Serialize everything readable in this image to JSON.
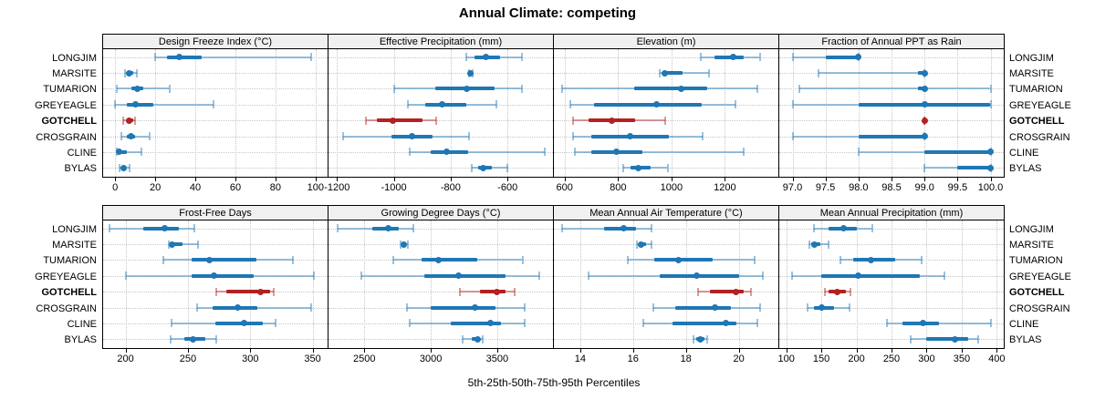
{
  "title": "Annual Climate: competing",
  "xlabel": "5th-25th-50th-75th-95th Percentiles",
  "chart_data": {
    "type": "dot-whisker-trellis",
    "title": "Annual Climate: competing",
    "xlabel": "5th-25th-50th-75th-95th Percentiles",
    "percentile_labels": [
      "5th",
      "25th",
      "50th",
      "75th",
      "95th"
    ],
    "sites": [
      "LONGJIM",
      "MARSITE",
      "TUMARION",
      "GREYEAGLE",
      "GOTCHELL",
      "CROSGRAIN",
      "CLINE",
      "BYLAS"
    ],
    "highlight_site": "GOTCHELL",
    "colors": {
      "series": "#1f77b4",
      "series_light": "rgba(31,119,180,0.45)",
      "highlight": "#b22222",
      "highlight_light": "rgba(178,34,34,0.45)",
      "header_bg": "#f0f0f0",
      "grid": "#c6c6c6"
    },
    "legend_position": "none",
    "grid": "dotted",
    "panels": [
      {
        "title": "Design Freeze Index (°C)",
        "xlim": [
          -6,
          106
        ],
        "ticks": [
          0,
          20,
          40,
          60,
          80,
          100
        ],
        "tick_labels": [
          "0",
          "20",
          "40",
          "60",
          "80",
          "100"
        ],
        "values": [
          [
            20,
            26,
            32,
            43,
            98
          ],
          [
            5,
            6,
            7,
            9,
            11
          ],
          [
            1,
            8,
            11,
            14,
            27
          ],
          [
            0,
            6,
            10,
            19,
            49
          ],
          [
            4,
            6,
            7,
            9,
            10
          ],
          [
            3,
            6,
            8,
            10,
            17
          ],
          [
            1,
            2,
            2,
            6,
            13
          ],
          [
            2,
            3,
            4,
            5,
            7
          ]
        ]
      },
      {
        "title": "Effective Precipitation (mm)",
        "xlim": [
          -1230,
          -440
        ],
        "ticks": [
          -1200,
          -1000,
          -800,
          -600
        ],
        "tick_labels": [
          "-1200",
          "-1000",
          "-800",
          "-600"
        ],
        "values": [
          [
            -745,
            -715,
            -675,
            -625,
            -550
          ],
          [
            -737,
            -733,
            -730,
            -727,
            -722
          ],
          [
            -1000,
            -855,
            -745,
            -645,
            -550
          ],
          [
            -950,
            -890,
            -830,
            -745,
            -640
          ],
          [
            -1100,
            -1060,
            -1005,
            -900,
            -850
          ],
          [
            -1180,
            -1010,
            -935,
            -865,
            -735
          ],
          [
            -945,
            -870,
            -815,
            -740,
            -470
          ],
          [
            -725,
            -705,
            -685,
            -655,
            -600
          ]
        ]
      },
      {
        "title": "Elevation (m)",
        "xlim": [
          560,
          1400
        ],
        "ticks": [
          600,
          800,
          1000,
          1200
        ],
        "tick_labels": [
          "600",
          "800",
          "1000",
          "1200"
        ],
        "values": [
          [
            1110,
            1160,
            1230,
            1270,
            1330
          ],
          [
            955,
            965,
            975,
            1040,
            1140
          ],
          [
            590,
            860,
            1035,
            1135,
            1320
          ],
          [
            620,
            710,
            945,
            1115,
            1240
          ],
          [
            630,
            690,
            775,
            865,
            975
          ],
          [
            630,
            700,
            845,
            990,
            1115
          ],
          [
            640,
            700,
            795,
            890,
            1270
          ],
          [
            820,
            845,
            875,
            920,
            985
          ]
        ]
      },
      {
        "title": "Fraction of Annual PPT as Rain",
        "xlim": [
          96.8,
          100.2
        ],
        "ticks": [
          97.0,
          97.5,
          98.0,
          98.5,
          99.0,
          99.5,
          100.0
        ],
        "tick_labels": [
          "97.0",
          "97.5",
          "98.0",
          "98.5",
          "99.0",
          "99.5",
          "100.0"
        ],
        "values": [
          [
            97.0,
            97.5,
            98.0,
            98.0,
            98.0
          ],
          [
            97.4,
            98.9,
            99.0,
            99.0,
            99.0
          ],
          [
            97.1,
            98.9,
            99.0,
            99.0,
            100.0
          ],
          [
            97.0,
            98.0,
            99.0,
            100.0,
            100.0
          ],
          [
            99.0,
            99.0,
            99.0,
            99.0,
            99.0
          ],
          [
            97.0,
            98.0,
            99.0,
            99.0,
            99.0
          ],
          [
            98.0,
            99.0,
            100.0,
            100.0,
            100.0
          ],
          [
            99.0,
            99.5,
            100.0,
            100.0,
            100.0
          ]
        ]
      },
      {
        "title": "Frost-Free Days",
        "xlim": [
          182,
          362
        ],
        "ticks": [
          200,
          250,
          300,
          350
        ],
        "tick_labels": [
          "200",
          "250",
          "300",
          "350"
        ],
        "values": [
          [
            187,
            214,
            231,
            243,
            255
          ],
          [
            235,
            236,
            237,
            246,
            258
          ],
          [
            230,
            253,
            267,
            305,
            334
          ],
          [
            200,
            253,
            271,
            303,
            351
          ],
          [
            273,
            281,
            308,
            316,
            319
          ],
          [
            257,
            270,
            290,
            306,
            349
          ],
          [
            237,
            272,
            295,
            310,
            320
          ],
          [
            236,
            247,
            254,
            264,
            273
          ]
        ]
      },
      {
        "title": "Growing Degree Days (°C)",
        "xlim": [
          2230,
          3920
        ],
        "ticks": [
          2500,
          3000,
          3500
        ],
        "tick_labels": [
          "2500",
          "3000",
          "3500"
        ],
        "values": [
          [
            2300,
            2560,
            2680,
            2760,
            2870
          ],
          [
            2770,
            2780,
            2795,
            2810,
            2825
          ],
          [
            2720,
            2930,
            3060,
            3350,
            3690
          ],
          [
            2480,
            2950,
            3210,
            3560,
            3820
          ],
          [
            3220,
            3370,
            3500,
            3560,
            3630
          ],
          [
            2820,
            3000,
            3330,
            3490,
            3710
          ],
          [
            2840,
            3150,
            3450,
            3530,
            3710
          ],
          [
            3240,
            3310,
            3350,
            3370,
            3390
          ]
        ]
      },
      {
        "title": "Mean Annual Air Temperature (°C)",
        "xlim": [
          13.0,
          21.5
        ],
        "ticks": [
          14,
          16,
          18,
          20
        ],
        "tick_labels": [
          "14",
          "16",
          "18",
          "20"
        ],
        "values": [
          [
            13.3,
            14.9,
            15.65,
            16.1,
            16.7
          ],
          [
            16.15,
            16.25,
            16.3,
            16.5,
            16.7
          ],
          [
            15.8,
            16.8,
            17.7,
            19.0,
            20.6
          ],
          [
            14.3,
            17.0,
            18.4,
            20.0,
            20.9
          ],
          [
            18.45,
            18.9,
            19.9,
            20.2,
            20.45
          ],
          [
            16.75,
            17.6,
            19.1,
            19.7,
            20.8
          ],
          [
            16.4,
            17.5,
            19.5,
            19.9,
            20.7
          ],
          [
            18.3,
            18.4,
            18.55,
            18.7,
            18.8
          ]
        ]
      },
      {
        "title": "Mean Annual Precipitation (mm)",
        "xlim": [
          90,
          410
        ],
        "ticks": [
          100,
          150,
          200,
          250,
          300,
          350,
          400
        ],
        "tick_labels": [
          "100",
          "150",
          "200",
          "250",
          "300",
          "350",
          "400"
        ],
        "values": [
          [
            140,
            160,
            182,
            200,
            222
          ],
          [
            133,
            136,
            140,
            148,
            160
          ],
          [
            177,
            195,
            221,
            255,
            293
          ],
          [
            108,
            150,
            203,
            290,
            325
          ],
          [
            155,
            160,
            173,
            185,
            192
          ],
          [
            130,
            140,
            150,
            168,
            190
          ],
          [
            243,
            265,
            295,
            318,
            392
          ],
          [
            277,
            300,
            340,
            360,
            373
          ]
        ]
      }
    ]
  }
}
